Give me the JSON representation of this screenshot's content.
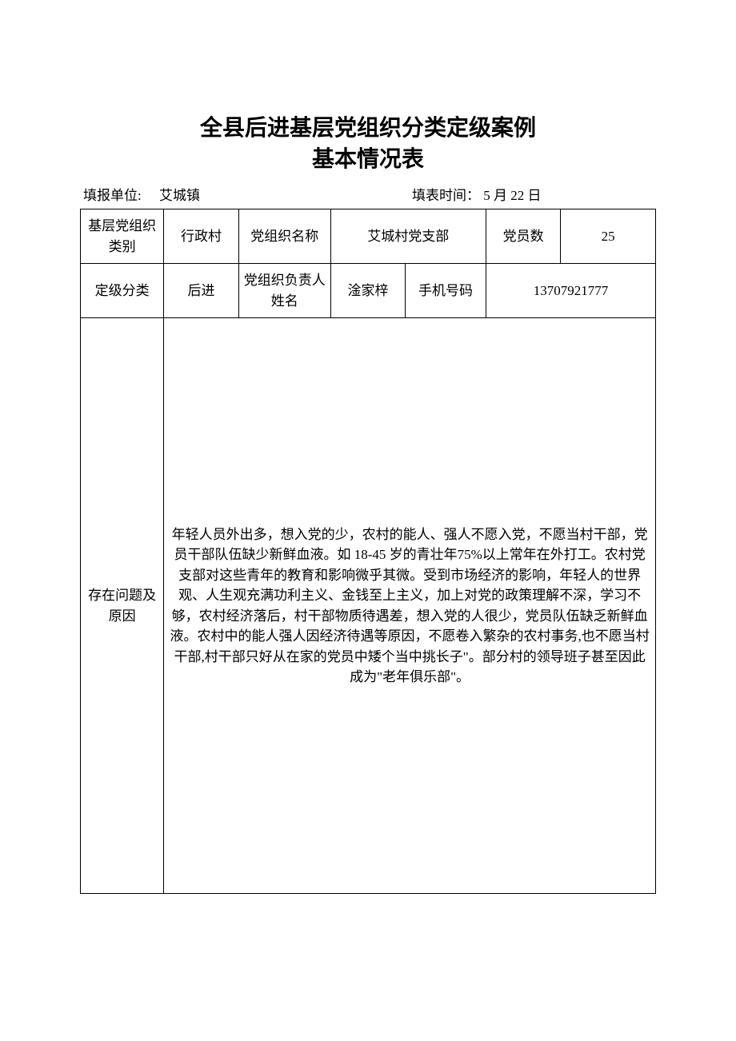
{
  "title": {
    "line1": "全县后进基层党组织分类定级案例",
    "line2": "基本情况表"
  },
  "meta": {
    "unit_label": "填报单位:",
    "unit_value": "艾城镇",
    "date_label": "填表时间：",
    "date_value": "5 月 22 日"
  },
  "row1": {
    "c1": "基层党组织类别",
    "c2": "行政村",
    "c3": "党组织名称",
    "c4": "艾城村党支部",
    "c5": "党员数",
    "c6": "25"
  },
  "row2": {
    "c1": "定级分类",
    "c2": "后进",
    "c3": "党组织负责人姓名",
    "c4": "淦家梓",
    "c5": "手机号码",
    "c6": "13707921777"
  },
  "body": {
    "label": "存在问题及原因",
    "text": "年轻人员外出多，想入党的少，农村的能人、强人不愿入党，不愿当村干部，党员干部队伍缺少新鲜血液。如 18-45 岁的青壮年75%以上常年在外打工。农村党支部对这些青年的教育和影响微乎其微。受到市场经济的影响，年轻人的世界观、人生观充满功利主义、金钱至上主义，加上对党的政策理解不深，学习不够，农村经济落后，村干部物质待遇差，想入党的人很少，党员队伍缺乏新鲜血液。农村中的能人强人因经济待遇等原因，不愿卷入繁杂的农村事务,也不愿当村干部,村干部只好从在家的党员中矮个当中挑长子\"。部分村的领导班子甚至因此成为\"老年俱乐部\"。"
  },
  "style": {
    "background_color": "#ffffff",
    "border_color": "#000000",
    "text_color": "#000000",
    "title_fontsize": 28,
    "cell_fontsize": 17,
    "body_line_height": 2.3
  }
}
